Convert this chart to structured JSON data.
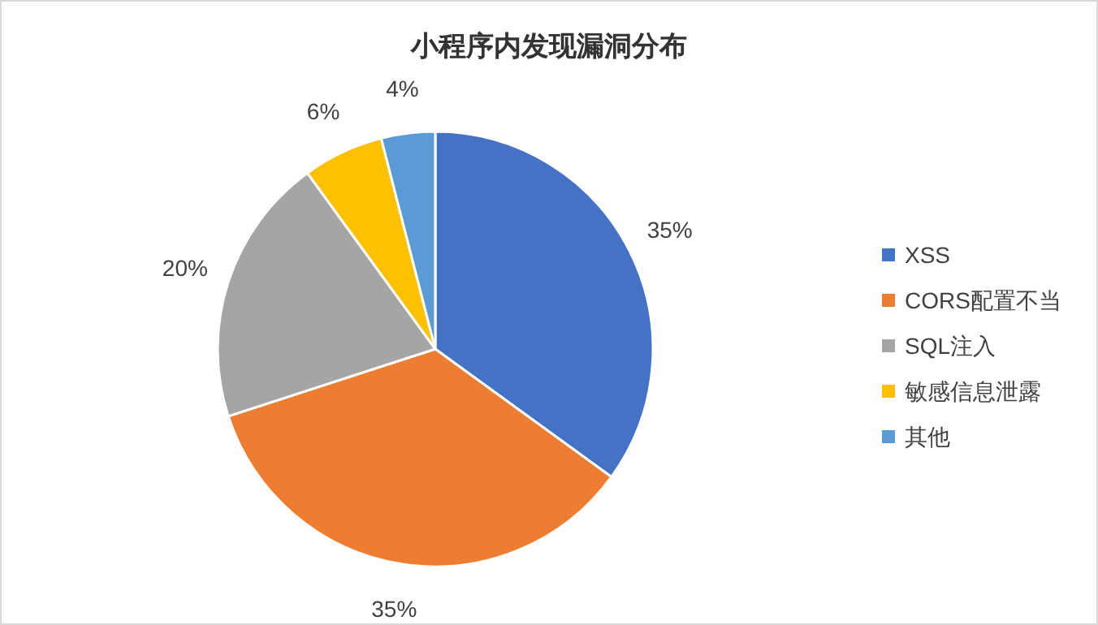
{
  "chart_data": {
    "type": "pie",
    "title": "小程序内发现漏洞分布",
    "categories": [
      "XSS",
      "CORS配置不当",
      "SQL注入",
      "敏感信息泄露",
      "其他"
    ],
    "values": [
      35,
      35,
      20,
      6,
      4
    ],
    "colors": [
      "#4472c4",
      "#ed7d31",
      "#a5a5a5",
      "#ffc000",
      "#5b9bd5"
    ],
    "value_labels": [
      "35%",
      "35%",
      "20%",
      "6%",
      "4%"
    ],
    "legend": "right"
  }
}
